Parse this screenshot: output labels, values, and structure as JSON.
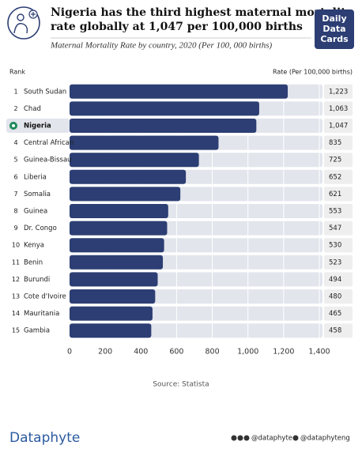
{
  "chart_data": {
    "type": "hbar",
    "title": [
      "Nigeria has the third highest maternal mortality",
      "rate globally at 1,047 per 100,000 births"
    ],
    "subtitle": "Maternal Mortality Rate by country, 2020 (Per 100, 000 births)",
    "rank_label": "Rank",
    "value_axis_label": "Rate (Per 100,000 births)",
    "ranks": [
      1,
      2,
      null,
      4,
      5,
      6,
      7,
      8,
      9,
      10,
      11,
      12,
      13,
      14,
      15
    ],
    "categories": [
      "South Sudan",
      "Chad",
      "Nigeria",
      "Central African",
      "Guinea-Bissau",
      "Liberia",
      "Somalia",
      "Guinea",
      "Dr. Congo",
      "Kenya",
      "Benin",
      "Burundi",
      "Cote d'Ivoire",
      "Mauritania",
      "Gambia"
    ],
    "values": [
      1223,
      1063,
      1047,
      835,
      725,
      652,
      621,
      553,
      547,
      530,
      523,
      494,
      480,
      465,
      458
    ],
    "value_labels": [
      "1,223",
      "1,063",
      "1,047",
      "835",
      "725",
      "652",
      "621",
      "553",
      "547",
      "530",
      "523",
      "494",
      "480",
      "465",
      "458"
    ],
    "highlight": "Nigeria",
    "color": "#2c3e73",
    "track_color": "#e2e5ec",
    "xlim": [
      0,
      1400
    ],
    "xticks": [
      0,
      200,
      400,
      600,
      800,
      {
        "value": 1000,
        "label": "1,000"
      },
      {
        "value": 1200,
        "label": "1,200"
      },
      {
        "value": 1400,
        "label": "1,400"
      }
    ],
    "grid": true,
    "source": "Source: Statista",
    "logo": [
      "Daily",
      "Data",
      "Cards"
    ],
    "brand": "Dataphyte",
    "handles": [
      "@dataphyte",
      "@dataphyteng"
    ]
  }
}
